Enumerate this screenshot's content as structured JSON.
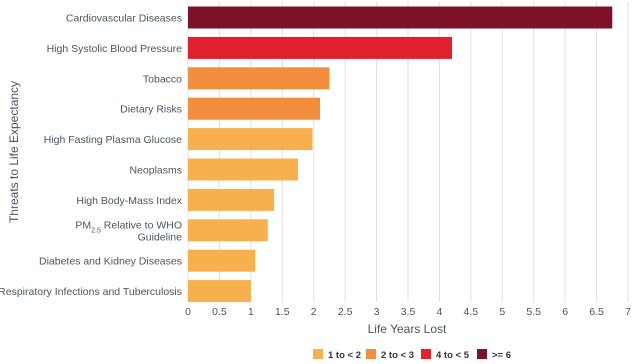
{
  "chart_data": {
    "type": "bar",
    "orientation": "horizontal",
    "title": "",
    "xlabel": "Life Years Lost",
    "ylabel": "Threats to Life Expectancy",
    "xlim": [
      0,
      7
    ],
    "x_ticks": [
      "0",
      "0.5",
      "1",
      "1.5",
      "2",
      "2.5",
      "3",
      "3.5",
      "4",
      "4.5",
      "5",
      "5.5",
      "6",
      "6.5",
      "7"
    ],
    "grid": "vertical gridlines",
    "legend_position": "bottom-right",
    "categories": [
      "Cardiovascular Diseases",
      "High Systolic Blood Pressure",
      "Tobacco",
      "Dietary Risks",
      "High Fasting Plasma Glucose",
      "Neoplasms",
      "High Body-Mass Index",
      "PM2.5 Relative to WHO Guideline",
      "Diabetes and Kidney Diseases",
      "Respiratory Infections and Tuberculosis"
    ],
    "values": [
      6.75,
      4.2,
      2.25,
      2.1,
      1.98,
      1.75,
      1.37,
      1.27,
      1.07,
      1.0
    ],
    "bin": [
      "ge6",
      "4to5",
      "2to3",
      "2to3",
      "1to2",
      "1to2",
      "1to2",
      "1to2",
      "1to2",
      "1to2"
    ],
    "legend": [
      {
        "key": "1to2",
        "label": "1 to < 2",
        "color": "#F6B04E"
      },
      {
        "key": "2to3",
        "label": "2 to < 3",
        "color": "#F28E3D"
      },
      {
        "key": "4to5",
        "label": "4 to < 5",
        "color": "#E0202D"
      },
      {
        "key": "ge6",
        "label": ">= 6",
        "color": "#7D1128"
      }
    ]
  }
}
